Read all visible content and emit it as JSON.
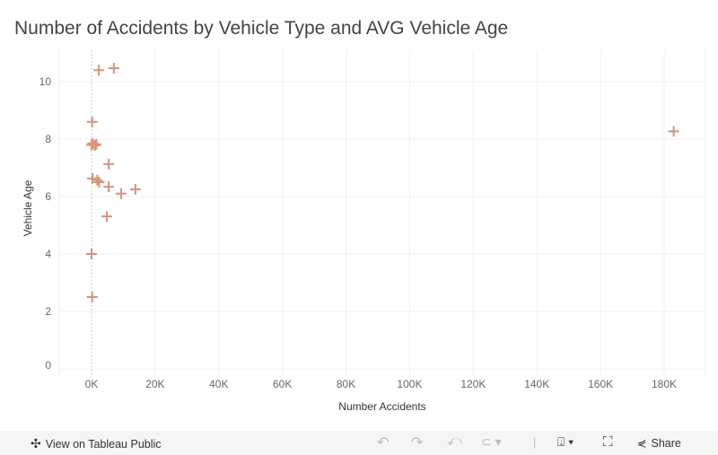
{
  "chart_data": {
    "type": "scatter",
    "title": "Number of Accidents by Vehicle Type and AVG Vehicle Age",
    "xlabel": "Number Accidents",
    "ylabel": "Vehicle Age",
    "xlim": [
      -10000,
      195000
    ],
    "ylim": [
      -0.25,
      11
    ],
    "xticks": [
      0,
      20000,
      40000,
      60000,
      80000,
      100000,
      120000,
      140000,
      160000,
      180000
    ],
    "xtick_labels": [
      "0K",
      "20K",
      "40K",
      "60K",
      "80K",
      "100K",
      "120K",
      "140K",
      "160K",
      "180K"
    ],
    "yticks": [
      0,
      2,
      4,
      6,
      8,
      10
    ],
    "ytick_labels": [
      "0",
      "2",
      "4",
      "6",
      "8",
      "10"
    ],
    "marker": "cross",
    "color": "#d4957a",
    "grid": true,
    "points": [
      {
        "x": 2300,
        "y": 10.4
      },
      {
        "x": 7000,
        "y": 10.47
      },
      {
        "x": 200,
        "y": 8.6
      },
      {
        "x": 400,
        "y": 7.85
      },
      {
        "x": 1500,
        "y": 7.82
      },
      {
        "x": 1000,
        "y": 7.78
      },
      {
        "x": 0,
        "y": 7.8
      },
      {
        "x": 5400,
        "y": 7.13
      },
      {
        "x": 300,
        "y": 6.63
      },
      {
        "x": 1800,
        "y": 6.57
      },
      {
        "x": 2400,
        "y": 6.5
      },
      {
        "x": 5400,
        "y": 6.34
      },
      {
        "x": 9300,
        "y": 6.1
      },
      {
        "x": 13800,
        "y": 6.25
      },
      {
        "x": 4800,
        "y": 5.31
      },
      {
        "x": 0,
        "y": 4.0
      },
      {
        "x": 200,
        "y": 2.5
      },
      {
        "x": 183000,
        "y": 8.27
      }
    ]
  },
  "toolbar": {
    "view_label": "View on Tableau Public",
    "share_label": "Share"
  }
}
